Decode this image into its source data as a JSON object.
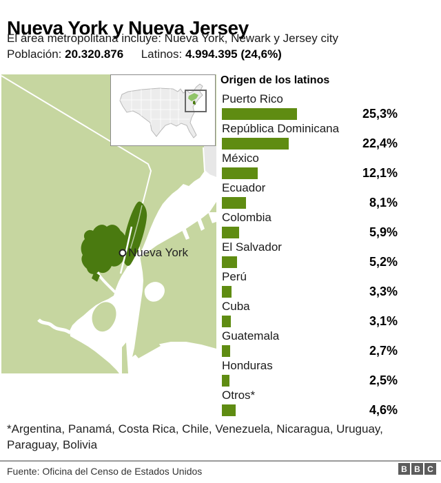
{
  "header": {
    "title": "Nueva York y Nueva Jersey",
    "subtitle": "El área metropolitana incluye: Nueva York, Newark y Jersey city",
    "population_label": "Población:",
    "population_value": "20.320.876",
    "latinos_label": "Latinos:",
    "latinos_value": "4.994.395 (24,6%)"
  },
  "map": {
    "city_label": "Nueva York",
    "colors": {
      "land": "#c6d6a0",
      "water": "#ffffff",
      "metro": "#4a7a10",
      "other_state": "#e7e7e7",
      "inset_us_fill": "#ececec",
      "inset_highlight": "#90c468",
      "inset_metro": "#4a7a10",
      "inset_frame": "#666666"
    }
  },
  "chart_data": {
    "type": "bar",
    "orientation": "horizontal",
    "title": "Origen de los latinos",
    "categories": [
      "Puerto Rico",
      "República Dominicana",
      "México",
      "Ecuador",
      "Colombia",
      "El Salvador",
      "Perú",
      "Cuba",
      "Guatemala",
      "Honduras",
      "Otros*"
    ],
    "values": [
      25.3,
      22.4,
      12.1,
      8.1,
      5.9,
      5.2,
      3.3,
      3.1,
      2.7,
      2.5,
      4.6
    ],
    "value_labels": [
      "25,3%",
      "22,4%",
      "12,1%",
      "8,1%",
      "5,9%",
      "5,2%",
      "3,3%",
      "3,1%",
      "2,7%",
      "2,5%",
      "4,6%"
    ],
    "xlim": [
      0,
      25.3
    ],
    "bar_color": "#5f8c12",
    "grid": false,
    "legend": false,
    "value_label_position": "right"
  },
  "footnote": "*Argentina, Panamá, Costa Rica, Chile, Venezuela, Nicaragua, Uruguay, Paraguay, Bolivia",
  "footer": {
    "source": "Fuente: Oficina del Censo de Estados Unidos",
    "logo_letters": [
      "B",
      "B",
      "C"
    ],
    "logo_color": "#5c5c5c"
  }
}
